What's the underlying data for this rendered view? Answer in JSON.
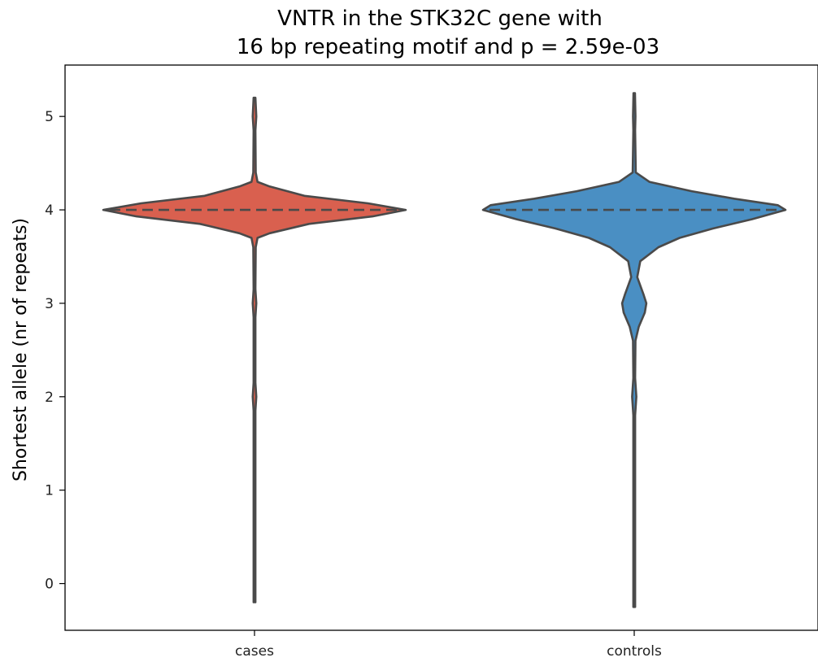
{
  "chart_data": {
    "type": "violin",
    "title": [
      "VNTR in the STK32C gene with",
      "16 bp repeating motif and p = 2.59e-03"
    ],
    "xlabel": "",
    "ylabel": "Shortest allele (nr of repeats)",
    "categories": [
      "cases",
      "controls"
    ],
    "yticks": [
      0,
      1,
      2,
      3,
      4,
      5
    ],
    "ylim": [
      -0.5,
      5.55
    ],
    "grid": false,
    "colors": {
      "cases": "#d9604f",
      "controls": "#4a8fc3",
      "outline": "#4a4a4a"
    },
    "series": [
      {
        "category": "cases",
        "median": 4,
        "min": -0.2,
        "max": 5.2,
        "density": [
          [
            -0.2,
            0.006
          ],
          [
            0.5,
            0.006
          ],
          [
            1.5,
            0.006
          ],
          [
            1.85,
            0.006
          ],
          [
            2.0,
            0.012
          ],
          [
            2.15,
            0.006
          ],
          [
            2.85,
            0.006
          ],
          [
            3.0,
            0.012
          ],
          [
            3.15,
            0.006
          ],
          [
            3.6,
            0.008
          ],
          [
            3.7,
            0.02
          ],
          [
            3.75,
            0.1
          ],
          [
            3.85,
            0.36
          ],
          [
            3.93,
            0.78
          ],
          [
            4.0,
            1.0
          ],
          [
            4.07,
            0.75
          ],
          [
            4.15,
            0.33
          ],
          [
            4.25,
            0.1
          ],
          [
            4.3,
            0.02
          ],
          [
            4.4,
            0.008
          ],
          [
            4.85,
            0.006
          ],
          [
            5.0,
            0.012
          ],
          [
            5.2,
            0.006
          ]
        ]
      },
      {
        "category": "controls",
        "median": 4,
        "min": -0.25,
        "max": 5.25,
        "density": [
          [
            -0.25,
            0.006
          ],
          [
            0.5,
            0.006
          ],
          [
            1.5,
            0.006
          ],
          [
            1.8,
            0.006
          ],
          [
            2.0,
            0.014
          ],
          [
            2.2,
            0.006
          ],
          [
            2.6,
            0.008
          ],
          [
            2.75,
            0.03
          ],
          [
            2.9,
            0.07
          ],
          [
            3.0,
            0.08
          ],
          [
            3.1,
            0.06
          ],
          [
            3.28,
            0.02
          ],
          [
            3.45,
            0.04
          ],
          [
            3.6,
            0.16
          ],
          [
            3.7,
            0.3
          ],
          [
            3.8,
            0.52
          ],
          [
            3.9,
            0.78
          ],
          [
            4.0,
            1.0
          ],
          [
            4.05,
            0.95
          ],
          [
            4.12,
            0.66
          ],
          [
            4.2,
            0.38
          ],
          [
            4.3,
            0.1
          ],
          [
            4.4,
            0.01
          ],
          [
            4.85,
            0.006
          ],
          [
            5.0,
            0.008
          ],
          [
            5.25,
            0.005
          ]
        ]
      }
    ]
  }
}
